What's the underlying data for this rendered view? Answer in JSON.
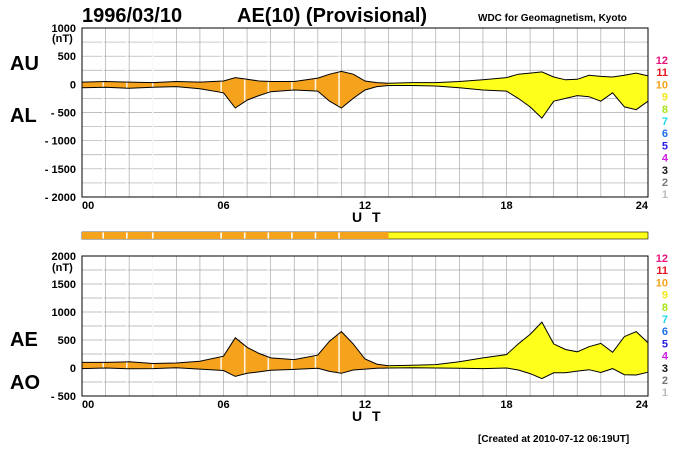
{
  "header": {
    "date": "1996/03/10",
    "index": "AE(10) (Provisional)",
    "source": "WDC for Geomagnetism, Kyoto",
    "created": "[Created at 2010-07-12 06:19UT]"
  },
  "legend_levels": [
    {
      "label": "12",
      "color": "#e8157e"
    },
    {
      "label": "11",
      "color": "#e8151e"
    },
    {
      "label": "10",
      "color": "#f5a31c"
    },
    {
      "label": "9",
      "color": "#f4e71c"
    },
    {
      "label": "8",
      "color": "#a8e41c"
    },
    {
      "label": "7",
      "color": "#1cd8ea"
    },
    {
      "label": "6",
      "color": "#1c6fe8"
    },
    {
      "label": "5",
      "color": "#2a1ce8"
    },
    {
      "label": "4",
      "color": "#d41ce8"
    },
    {
      "label": "3",
      "color": "#111111"
    },
    {
      "label": "2",
      "color": "#777777"
    },
    {
      "label": "1",
      "color": "#bbbbbb"
    }
  ],
  "colors": {
    "orange_fill": "#f5a31c",
    "yellow_fill": "#ffff1c",
    "white_gap": "#ffffff",
    "grid": "#aaaaaa"
  },
  "chart_data": [
    {
      "type": "area",
      "name": "AU/AL panel",
      "ylabel_top": "AU",
      "ylabel_bottom": "AL",
      "unit": "(nT)",
      "xlabel": "U T",
      "xlim": [
        0,
        24
      ],
      "ylim": [
        -2000,
        1000
      ],
      "x_ticks": [
        0,
        6,
        12,
        18,
        24
      ],
      "x_tick_labels": [
        "00",
        "06",
        "12",
        "18",
        "24"
      ],
      "y_ticks": [
        1000,
        500,
        0,
        -500,
        -1000,
        -1500,
        -2000
      ],
      "y_tick_labels": [
        "1000",
        "500",
        "0",
        "- 500",
        "- 1000",
        "- 1500",
        "- 2000"
      ],
      "x": [
        0,
        1,
        2,
        3,
        4,
        5,
        6,
        6.5,
        7,
        7.5,
        8,
        9,
        10,
        10.5,
        11,
        11.5,
        12,
        12.5,
        13,
        14,
        15,
        16,
        17,
        18,
        18.5,
        19,
        19.5,
        20,
        20.5,
        21,
        21.5,
        22,
        22.5,
        23,
        23.5,
        24
      ],
      "series": [
        {
          "name": "AU",
          "values": [
            40,
            50,
            40,
            30,
            50,
            40,
            60,
            120,
            90,
            60,
            50,
            50,
            110,
            180,
            230,
            180,
            60,
            30,
            20,
            30,
            30,
            50,
            80,
            120,
            180,
            200,
            220,
            130,
            80,
            90,
            160,
            140,
            130,
            160,
            200,
            150
          ]
        },
        {
          "name": "AL",
          "values": [
            -60,
            -50,
            -70,
            -50,
            -40,
            -80,
            -150,
            -420,
            -280,
            -200,
            -130,
            -100,
            -120,
            -300,
            -420,
            -250,
            -100,
            -40,
            -20,
            -20,
            -30,
            -60,
            -100,
            -120,
            -250,
            -400,
            -600,
            -300,
            -250,
            -200,
            -220,
            -300,
            -150,
            -400,
            -450,
            -300
          ]
        }
      ],
      "quality_bar": false
    },
    {
      "type": "area",
      "name": "AE/AO panel",
      "ylabel_top": "AE",
      "ylabel_bottom": "AO",
      "unit": "(nT)",
      "xlabel": "U T",
      "xlim": [
        0,
        24
      ],
      "ylim": [
        -500,
        2000
      ],
      "x_ticks": [
        0,
        6,
        12,
        18,
        24
      ],
      "x_tick_labels": [
        "00",
        "06",
        "12",
        "18",
        "24"
      ],
      "y_ticks": [
        2000,
        1500,
        1000,
        500,
        0,
        -500
      ],
      "y_tick_labels": [
        "2000",
        "1500",
        "1000",
        "500",
        "0",
        "- 500"
      ],
      "x": [
        0,
        1,
        2,
        3,
        4,
        5,
        6,
        6.5,
        7,
        7.5,
        8,
        9,
        10,
        10.5,
        11,
        11.5,
        12,
        12.5,
        13,
        14,
        15,
        16,
        17,
        18,
        18.5,
        19,
        19.5,
        20,
        20.5,
        21,
        21.5,
        22,
        22.5,
        23,
        23.5,
        24
      ],
      "series": [
        {
          "name": "AE",
          "values": [
            100,
            100,
            110,
            80,
            90,
            120,
            210,
            540,
            370,
            260,
            180,
            150,
            230,
            480,
            650,
            430,
            160,
            70,
            40,
            50,
            60,
            110,
            180,
            240,
            430,
            600,
            820,
            430,
            330,
            290,
            380,
            440,
            280,
            560,
            650,
            450
          ]
        },
        {
          "name": "AO",
          "values": [
            -10,
            0,
            -15,
            -10,
            5,
            -20,
            -45,
            -150,
            -95,
            -70,
            -40,
            -25,
            -5,
            -60,
            -95,
            -35,
            -20,
            -5,
            0,
            5,
            0,
            -5,
            -10,
            0,
            -35,
            -100,
            -190,
            -85,
            -85,
            -55,
            -30,
            -80,
            -10,
            -120,
            -125,
            -75
          ]
        }
      ]
    }
  ],
  "quality_bar": {
    "orange_until_hour": 13,
    "gaps_hours": [
      0.9,
      1.9,
      3,
      5.9,
      6.9,
      7.9,
      8.9,
      9.9,
      10.9
    ]
  }
}
